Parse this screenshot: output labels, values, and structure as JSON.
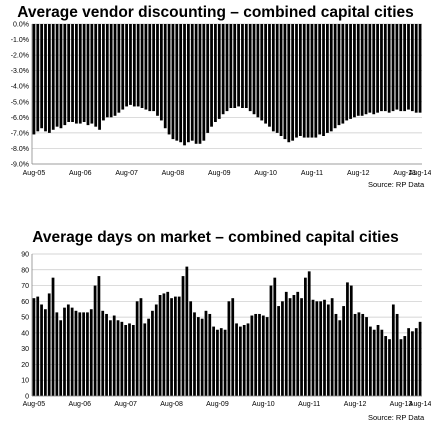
{
  "chart_data": [
    {
      "type": "bar",
      "title": "Average vendor discounting – combined capital cities",
      "source": "Source: RP Data",
      "ylim": [
        -9.0,
        0.0
      ],
      "yticks": [
        "0.0%",
        "-1.0%",
        "-2.0%",
        "-3.0%",
        "-4.0%",
        "-5.0%",
        "-6.0%",
        "-7.0%",
        "-8.0%",
        "-9.0%"
      ],
      "ytick_values": [
        0,
        -1,
        -2,
        -3,
        -4,
        -5,
        -6,
        -7,
        -8,
        -9
      ],
      "xticks": [
        "Aug-05",
        "Aug-06",
        "Aug-07",
        "Aug-08",
        "Aug-09",
        "Aug-10",
        "Aug-11",
        "Aug-12",
        "Aug-13",
        "Aug-14"
      ],
      "grid": true,
      "values": [
        -7.1,
        -6.9,
        -6.7,
        -6.9,
        -7.0,
        -6.8,
        -6.6,
        -6.7,
        -6.5,
        -6.3,
        -6.3,
        -6.4,
        -6.4,
        -6.3,
        -6.5,
        -6.4,
        -6.6,
        -6.8,
        -6.2,
        -6.0,
        -6.0,
        -5.9,
        -5.7,
        -5.5,
        -5.3,
        -5.2,
        -5.3,
        -5.3,
        -5.4,
        -5.5,
        -5.6,
        -5.6,
        -5.9,
        -6.2,
        -6.7,
        -7.1,
        -7.4,
        -7.5,
        -7.6,
        -7.8,
        -7.6,
        -7.5,
        -7.7,
        -7.7,
        -7.5,
        -7.0,
        -6.6,
        -6.3,
        -6.1,
        -5.8,
        -5.6,
        -5.4,
        -5.4,
        -5.3,
        -5.4,
        -5.4,
        -5.6,
        -5.8,
        -6.0,
        -6.2,
        -6.4,
        -6.6,
        -6.9,
        -7.0,
        -7.2,
        -7.4,
        -7.6,
        -7.5,
        -7.3,
        -7.2,
        -7.3,
        -7.3,
        -7.3,
        -7.3,
        -7.1,
        -7.2,
        -7.0,
        -6.9,
        -6.7,
        -6.5,
        -6.4,
        -6.2,
        -6.1,
        -6.0,
        -5.9,
        -5.9,
        -5.8,
        -5.7,
        -5.8,
        -5.7,
        -5.6,
        -5.6,
        -5.7,
        -5.6,
        -5.5,
        -5.6,
        -5.6,
        -5.5,
        -5.6,
        -5.7,
        -5.7
      ],
      "bar_color": "#000000"
    },
    {
      "type": "bar",
      "title": "Average days on market – combined capital cities",
      "source": "Source: RP Data",
      "ylim": [
        0,
        90
      ],
      "yticks": [
        "0",
        "10",
        "20",
        "30",
        "40",
        "50",
        "60",
        "70",
        "80",
        "90"
      ],
      "ytick_values": [
        0,
        10,
        20,
        30,
        40,
        50,
        60,
        70,
        80,
        90
      ],
      "xticks": [
        "Aug-05",
        "Aug-06",
        "Aug-07",
        "Aug-08",
        "Aug-09",
        "Aug-10",
        "Aug-11",
        "Aug-12",
        "Aug-13",
        "Aug-14"
      ],
      "grid": true,
      "values": [
        62,
        63,
        58,
        55,
        65,
        75,
        53,
        48,
        56,
        58,
        56,
        54,
        53,
        53,
        53,
        55,
        70,
        76,
        54,
        52,
        48,
        51,
        48,
        47,
        45,
        46,
        45,
        60,
        62,
        46,
        49,
        54,
        58,
        64,
        65,
        66,
        62,
        63,
        63,
        76,
        82,
        60,
        53,
        50,
        49,
        54,
        52,
        44,
        42,
        43,
        42,
        60,
        62,
        46,
        44,
        45,
        46,
        51,
        52,
        52,
        51,
        50,
        70,
        75,
        57,
        60,
        66,
        62,
        64,
        66,
        62,
        75,
        79,
        61,
        60,
        60,
        61,
        58,
        62,
        52,
        48,
        57,
        72,
        70,
        52,
        53,
        52,
        50,
        44,
        42,
        45,
        42,
        38,
        36,
        58,
        52,
        36,
        38,
        43,
        41,
        43,
        47
      ],
      "bar_color": "#000000"
    }
  ]
}
